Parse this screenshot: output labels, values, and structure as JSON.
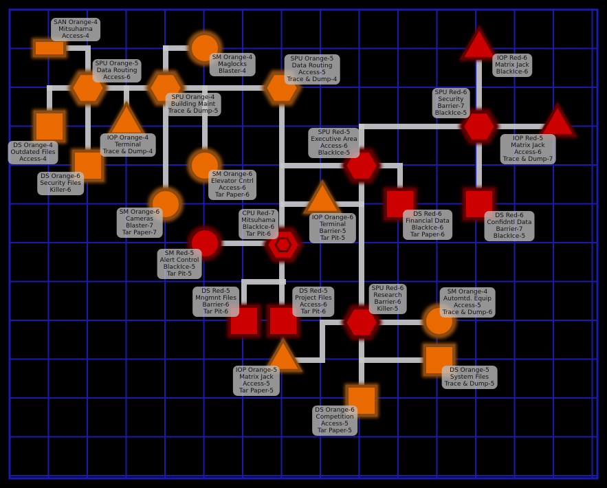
{
  "colors": {
    "background": "#000000",
    "grid": "#1a1ab0",
    "link": "#c8c8c8",
    "orange_fill": "#e86a00",
    "orange_glow": "#8a4a10",
    "red_fill": "#cc0000",
    "red_glow": "#600000",
    "label_bg": "#bebebe"
  },
  "nodes": [
    {
      "id": "san-mitsuhama",
      "shape": "rect-wide",
      "color": "orange",
      "lines": [
        "SAN Orange-4",
        "Mitsuhama",
        "Access-4"
      ]
    },
    {
      "id": "spu-data-routing-6",
      "shape": "hexagon",
      "color": "orange",
      "lines": [
        "SPU Orange-5",
        "Data Routing",
        "Access-6"
      ]
    },
    {
      "id": "spu-building-maint",
      "shape": "hexagon",
      "color": "orange",
      "lines": [
        "SPU Orange-4",
        "Building Maint",
        "Trace & Dump-5"
      ]
    },
    {
      "id": "sm-maglocks",
      "shape": "circle",
      "color": "orange",
      "lines": [
        "SM Orange-4",
        "Maglocks",
        "Blaster-4"
      ]
    },
    {
      "id": "spu-data-routing-5",
      "shape": "hexagon",
      "color": "orange",
      "lines": [
        "SPU Orange-5",
        "Data Routing",
        "Access-5",
        "Trace & Dump-4"
      ]
    },
    {
      "id": "ds-outdated-files",
      "shape": "square",
      "color": "orange",
      "lines": [
        "DS Orange-4",
        "Outdated Files",
        "Access-4"
      ]
    },
    {
      "id": "iop-terminal-4",
      "shape": "triangle",
      "color": "orange",
      "lines": [
        "IOP Orange-4",
        "Terminal",
        "Trace & Dump-4"
      ]
    },
    {
      "id": "ds-security-files",
      "shape": "square",
      "color": "orange",
      "lines": [
        "DS Orange-6",
        "Security Files",
        "Killer-6"
      ]
    },
    {
      "id": "sm-elevator",
      "shape": "circle",
      "color": "orange",
      "lines": [
        "SM Orange-6",
        "Elevator Cntrl",
        "Access-6",
        "Tar Paper-6"
      ]
    },
    {
      "id": "sm-cameras",
      "shape": "circle",
      "color": "orange",
      "lines": [
        "SM Orange-6",
        "Cameras",
        "Blaster-7",
        "Tar Paper-7"
      ]
    },
    {
      "id": "iop-matrix-jack-6",
      "shape": "triangle",
      "color": "red",
      "lines": [
        "IOP Red-6",
        "Matrix Jack",
        "BlackIce-6"
      ]
    },
    {
      "id": "spu-security",
      "shape": "hexagon",
      "color": "red",
      "lines": [
        "SPU Red-6",
        "Security",
        "Barrier-7",
        "BlackIce-5"
      ]
    },
    {
      "id": "iop-matrix-jack-5",
      "shape": "triangle",
      "color": "red",
      "lines": [
        "IOP Red-5",
        "Matrix Jack",
        "Access-6",
        "Trace & Dump-7"
      ]
    },
    {
      "id": "spu-executive",
      "shape": "hexagon",
      "color": "red",
      "lines": [
        "SPU Red-5",
        "Executive Area",
        "Access-6",
        "BlackIce-5"
      ]
    },
    {
      "id": "iop-terminal-6",
      "shape": "triangle",
      "color": "orange",
      "lines": [
        "IOP Orange-6",
        "Terminal",
        "Barrier-5",
        "Tar Pit-5"
      ]
    },
    {
      "id": "ds-financial",
      "shape": "square",
      "color": "red",
      "lines": [
        "DS Red-6",
        "Financial Data",
        "BlackIce-6",
        "Tar Paper-6"
      ]
    },
    {
      "id": "ds-confidential",
      "shape": "square",
      "color": "red",
      "lines": [
        "DS Red-6",
        "Confidntl Data",
        "Barrier-7",
        "BlackIce-5"
      ]
    },
    {
      "id": "cpu-mitsuhama",
      "shape": "cpu",
      "color": "red",
      "lines": [
        "CPU Red-7",
        "Mitsuhama",
        "BlackIce-6",
        "Tar Pit-6"
      ]
    },
    {
      "id": "sm-alert-control",
      "shape": "circle",
      "color": "red",
      "lines": [
        "SM Red-5",
        "Alert Control",
        "BlackIce-5",
        "Tar Pit-5"
      ]
    },
    {
      "id": "ds-mngmnt-files",
      "shape": "square",
      "color": "red",
      "lines": [
        "DS Red-5",
        "Mngmnt Files",
        "Barrier-6",
        "Tar Pit-6"
      ]
    },
    {
      "id": "ds-project-files",
      "shape": "square",
      "color": "red",
      "lines": [
        "DS Red-5",
        "Project Files",
        "Access-6",
        "Tar Pit-6"
      ]
    },
    {
      "id": "spu-research",
      "shape": "hexagon",
      "color": "red",
      "lines": [
        "SPU Red-6",
        "Research",
        "Barrier-6",
        "Killer-5"
      ]
    },
    {
      "id": "sm-automtd-equip",
      "shape": "circle",
      "color": "orange",
      "lines": [
        "SM Orange-4",
        "Automtd. Equip",
        "Access-5",
        "Trace & Dump-6"
      ]
    },
    {
      "id": "iop-matrix-jack-orange",
      "shape": "triangle",
      "color": "orange",
      "lines": [
        "IOP Orange-5",
        "Matrix Jack",
        "Access-5",
        "Tar Paper-5"
      ]
    },
    {
      "id": "ds-system-files",
      "shape": "square",
      "color": "orange",
      "lines": [
        "DS Orange-5",
        "System Files",
        "Trace & Dump-5"
      ]
    },
    {
      "id": "ds-competition",
      "shape": "square",
      "color": "orange",
      "lines": [
        "DS Orange-6",
        "Competition",
        "Access-5",
        "Tar Paper-5"
      ]
    }
  ]
}
